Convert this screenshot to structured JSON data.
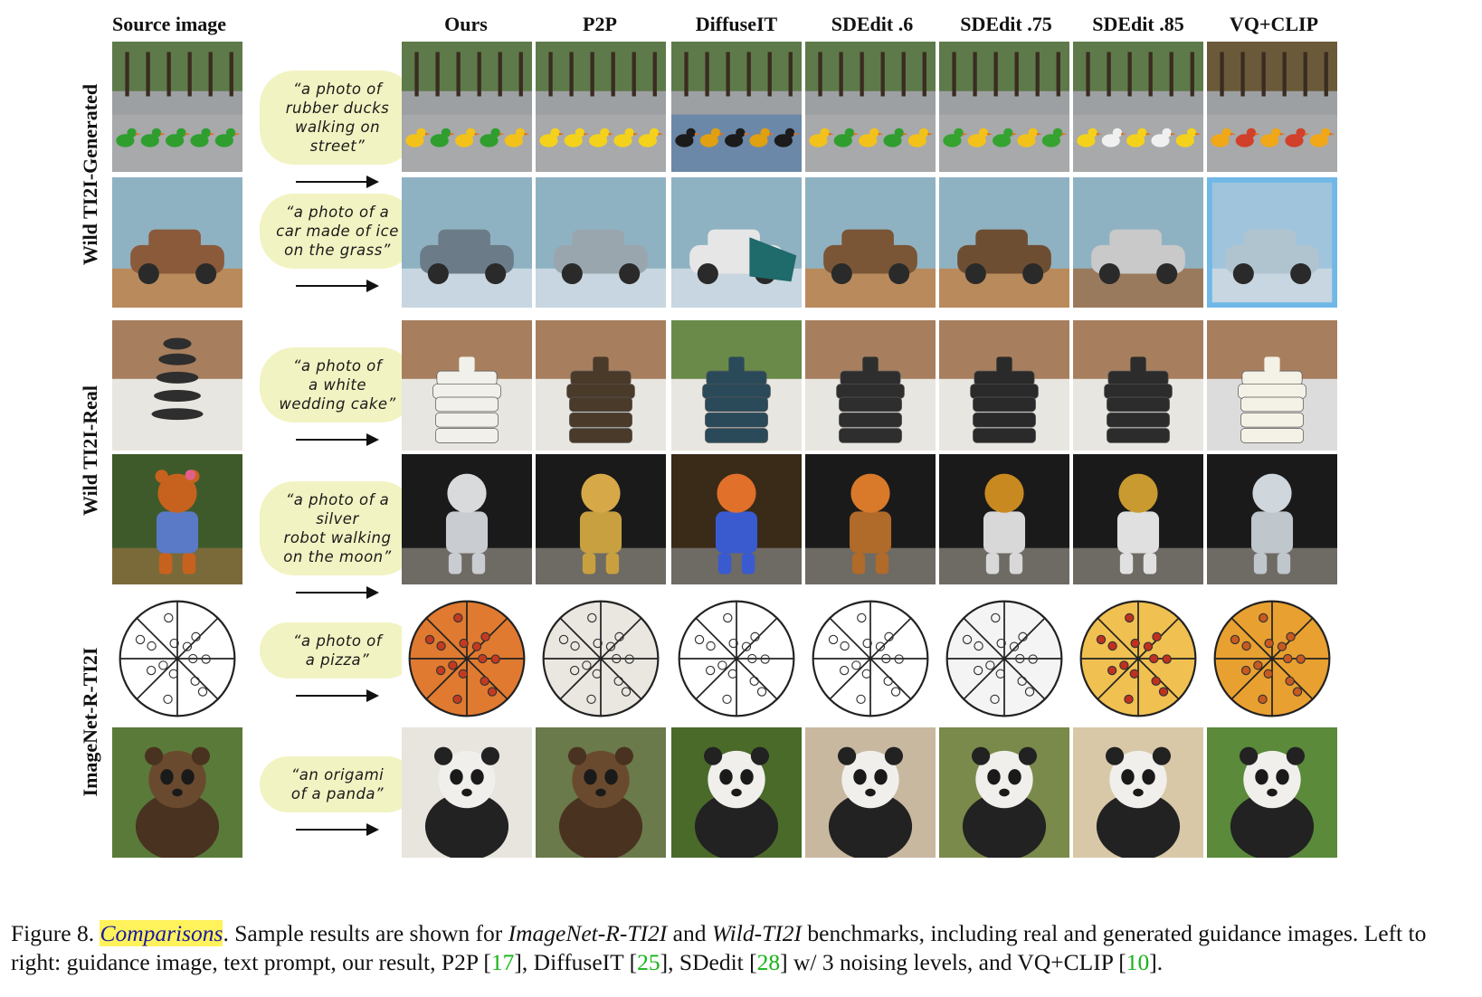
{
  "headers": {
    "source": "Source image",
    "methods": [
      "Ours",
      "P2P",
      "DiffuseIT",
      "SDEdit .6",
      "SDEdit .75",
      "SDEdit .85",
      "VQ+CLIP"
    ]
  },
  "groups": [
    "Wild TI2I-Generated",
    "Wild TI2I-Real",
    "ImageNet-R-TI2I"
  ],
  "prompts": [
    [
      "“a photo of",
      "rubber ducks",
      "walking on",
      "street”"
    ],
    [
      "“a photo of a",
      "car made of ice",
      "on the grass”"
    ],
    [
      "“a photo of",
      "a white",
      "wedding cake”"
    ],
    [
      "“a photo of a silver",
      "robot walking",
      "on the moon”"
    ],
    [
      "“a photo of",
      "a pizza”"
    ],
    [
      "“an origami",
      "of a panda”"
    ]
  ],
  "caption": {
    "fig": "Figure 8.",
    "highlight": "Comparisons",
    "t1": ". Sample results are shown for ",
    "b1": "ImageNet-R-TI2I",
    "t2": " and ",
    "b2": "Wild-TI2I",
    "t3": " benchmarks, including real and generated guidance images. Left to right: guidance image, text prompt, our result, P2P [",
    "c1": "17",
    "t4": "], DiffuseIT [",
    "c2": "25",
    "t5": "], SDedit [",
    "c3": "28",
    "t6": "] w/ 3 noising levels, and VQ+CLIP [",
    "c4": "10",
    "t7": "]."
  },
  "tile_subjects": [
    [
      "street-ducks-source",
      "ducks-ours",
      "ducks-p2p",
      "ducks-diffuseit",
      "ducks-sdedit-06",
      "ducks-sdedit-075",
      "ducks-sdedit-085",
      "ducks-vqclip"
    ],
    [
      "sand-car-source",
      "ice-car-ours",
      "ice-car-p2p",
      "ice-car-diffuseit",
      "car-sdedit-06",
      "car-sdedit-075",
      "car-sdedit-085",
      "ice-car-vqclip"
    ],
    [
      "stacked-stones-source",
      "cake-ours",
      "cake-p2p",
      "cake-diffuseit",
      "cake-sdedit-06",
      "cake-sdedit-075",
      "cake-sdedit-085",
      "cake-vqclip"
    ],
    [
      "teddy-bear-source",
      "robot-ours",
      "robot-p2p",
      "robot-diffuseit",
      "robot-sdedit-06",
      "robot-sdedit-075",
      "robot-sdedit-085",
      "robot-vqclip"
    ],
    [
      "pizza-sketch-source",
      "pizza-ours",
      "pizza-p2p",
      "pizza-diffuseit",
      "pizza-sdedit-06",
      "pizza-sdedit-075",
      "pizza-sdedit-085",
      "pizza-vqclip"
    ],
    [
      "bear-statue-source",
      "panda-ours",
      "panda-p2p",
      "panda-diffuseit",
      "panda-sdedit-06",
      "panda-sdedit-075",
      "panda-sdedit-085",
      "panda-vqclip"
    ]
  ]
}
